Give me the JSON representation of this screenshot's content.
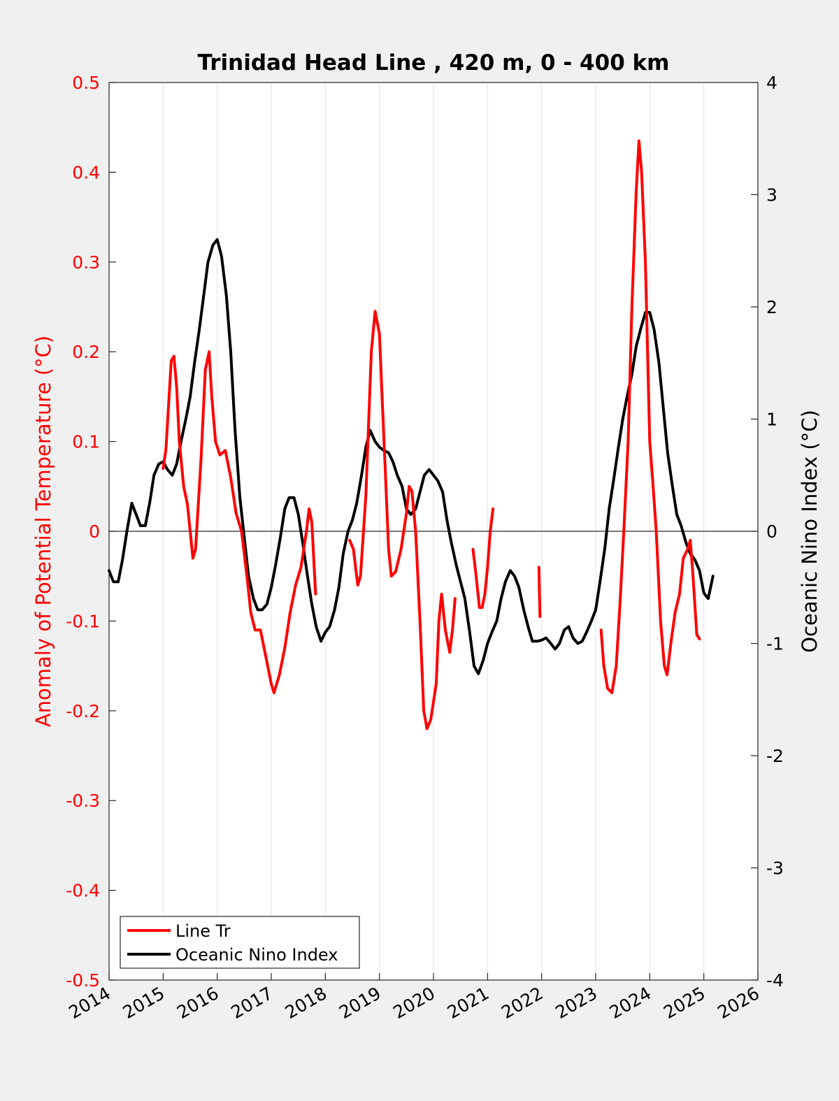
{
  "chart_data": {
    "type": "line",
    "title": "Trinidad Head Line , 420 m, 0 - 400 km",
    "xlim": [
      2014,
      2026
    ],
    "x_ticks": [
      "2014",
      "2015",
      "2016",
      "2017",
      "2018",
      "2019",
      "2020",
      "2021",
      "2022",
      "2023",
      "2024",
      "2025",
      "2026"
    ],
    "x_grid": true,
    "left_axis": {
      "label": "Anomaly of Potential Temperature (°C)",
      "color": "#ff0000",
      "ylim": [
        -0.5,
        0.5
      ],
      "ticks": [
        "0.5",
        "0.4",
        "0.3",
        "0.2",
        "0.1",
        "0",
        "-0.1",
        "-0.2",
        "-0.3",
        "-0.4",
        "-0.5"
      ]
    },
    "right_axis": {
      "label": "Oceanic Nino Index (°C)",
      "color": "#000000",
      "ylim": [
        -4,
        4
      ],
      "ticks": [
        "4",
        "3",
        "2",
        "1",
        "0",
        "-1",
        "-2",
        "-3",
        "-4"
      ]
    },
    "zero_line": true,
    "legend": {
      "position": "bottom-left",
      "entries": [
        "Line Tr",
        "Oceanic Nino Index"
      ]
    },
    "series": [
      {
        "name": "Line Tr",
        "axis": "left",
        "color": "#ff0000",
        "segments": [
          [
            [
              2015.0,
              0.07
            ],
            [
              2015.05,
              0.09
            ],
            [
              2015.1,
              0.14
            ],
            [
              2015.15,
              0.19
            ],
            [
              2015.2,
              0.195
            ],
            [
              2015.25,
              0.16
            ],
            [
              2015.3,
              0.1
            ],
            [
              2015.38,
              0.05
            ],
            [
              2015.45,
              0.03
            ],
            [
              2015.5,
              0.0
            ],
            [
              2015.55,
              -0.03
            ],
            [
              2015.6,
              -0.02
            ],
            [
              2015.7,
              0.08
            ],
            [
              2015.78,
              0.18
            ],
            [
              2015.85,
              0.2
            ],
            [
              2015.9,
              0.15
            ],
            [
              2015.97,
              0.1
            ],
            [
              2016.05,
              0.085
            ],
            [
              2016.15,
              0.09
            ],
            [
              2016.25,
              0.06
            ],
            [
              2016.35,
              0.02
            ],
            [
              2016.45,
              0.0
            ],
            [
              2016.55,
              -0.05
            ],
            [
              2016.62,
              -0.09
            ],
            [
              2016.7,
              -0.11
            ],
            [
              2016.8,
              -0.11
            ],
            [
              2016.9,
              -0.14
            ],
            [
              2017.0,
              -0.17
            ],
            [
              2017.05,
              -0.18
            ],
            [
              2017.15,
              -0.16
            ],
            [
              2017.25,
              -0.13
            ],
            [
              2017.35,
              -0.09
            ],
            [
              2017.45,
              -0.06
            ],
            [
              2017.55,
              -0.04
            ],
            [
              2017.65,
              0.0
            ],
            [
              2017.7,
              0.025
            ],
            [
              2017.75,
              0.01
            ],
            [
              2017.82,
              -0.07
            ]
          ],
          [
            [
              2018.45,
              -0.01
            ],
            [
              2018.52,
              -0.02
            ],
            [
              2018.6,
              -0.06
            ],
            [
              2018.65,
              -0.05
            ],
            [
              2018.75,
              0.04
            ],
            [
              2018.85,
              0.2
            ],
            [
              2018.92,
              0.245
            ],
            [
              2019.0,
              0.22
            ],
            [
              2019.05,
              0.15
            ],
            [
              2019.1,
              0.08
            ],
            [
              2019.17,
              -0.02
            ],
            [
              2019.22,
              -0.05
            ],
            [
              2019.3,
              -0.045
            ],
            [
              2019.4,
              -0.02
            ],
            [
              2019.5,
              0.02
            ],
            [
              2019.55,
              0.05
            ],
            [
              2019.6,
              0.045
            ],
            [
              2019.67,
              0.0
            ],
            [
              2019.75,
              -0.1
            ],
            [
              2019.82,
              -0.2
            ],
            [
              2019.88,
              -0.22
            ],
            [
              2019.95,
              -0.21
            ],
            [
              2020.05,
              -0.17
            ],
            [
              2020.1,
              -0.1
            ],
            [
              2020.15,
              -0.07
            ],
            [
              2020.22,
              -0.11
            ],
            [
              2020.3,
              -0.135
            ],
            [
              2020.35,
              -0.11
            ],
            [
              2020.4,
              -0.075
            ]
          ],
          [
            [
              2020.73,
              -0.02
            ],
            [
              2020.78,
              -0.045
            ],
            [
              2020.85,
              -0.085
            ],
            [
              2020.9,
              -0.085
            ],
            [
              2020.95,
              -0.07
            ],
            [
              2021.0,
              -0.04
            ],
            [
              2021.05,
              0.0
            ],
            [
              2021.1,
              0.025
            ]
          ],
          [
            [
              2021.95,
              -0.04
            ],
            [
              2021.96,
              -0.07
            ],
            [
              2021.97,
              -0.095
            ]
          ],
          [
            [
              2023.1,
              -0.11
            ],
            [
              2023.15,
              -0.15
            ],
            [
              2023.22,
              -0.175
            ],
            [
              2023.3,
              -0.18
            ],
            [
              2023.38,
              -0.15
            ],
            [
              2023.45,
              -0.08
            ],
            [
              2023.52,
              0.0
            ],
            [
              2023.6,
              0.1
            ],
            [
              2023.67,
              0.25
            ],
            [
              2023.75,
              0.38
            ],
            [
              2023.8,
              0.435
            ],
            [
              2023.85,
              0.4
            ],
            [
              2023.92,
              0.3
            ],
            [
              2024.0,
              0.1
            ],
            [
              2024.05,
              0.06
            ],
            [
              2024.12,
              0.0
            ],
            [
              2024.2,
              -0.1
            ],
            [
              2024.27,
              -0.15
            ],
            [
              2024.32,
              -0.16
            ],
            [
              2024.4,
              -0.12
            ],
            [
              2024.47,
              -0.09
            ],
            [
              2024.55,
              -0.07
            ],
            [
              2024.62,
              -0.03
            ],
            [
              2024.7,
              -0.02
            ],
            [
              2024.75,
              -0.01
            ],
            [
              2024.8,
              -0.05
            ],
            [
              2024.87,
              -0.115
            ],
            [
              2024.92,
              -0.12
            ]
          ]
        ]
      },
      {
        "name": "Oceanic Nino Index",
        "axis": "right",
        "color": "#000000",
        "segments": [
          [
            [
              2014.0,
              -0.35
            ],
            [
              2014.08,
              -0.45
            ],
            [
              2014.17,
              -0.45
            ],
            [
              2014.25,
              -0.25
            ],
            [
              2014.33,
              0.0
            ],
            [
              2014.42,
              0.25
            ],
            [
              2014.5,
              0.15
            ],
            [
              2014.58,
              0.05
            ],
            [
              2014.67,
              0.05
            ],
            [
              2014.75,
              0.25
            ],
            [
              2014.83,
              0.5
            ],
            [
              2014.92,
              0.6
            ],
            [
              2015.0,
              0.62
            ],
            [
              2015.08,
              0.55
            ],
            [
              2015.17,
              0.5
            ],
            [
              2015.25,
              0.6
            ],
            [
              2015.33,
              0.8
            ],
            [
              2015.42,
              1.0
            ],
            [
              2015.5,
              1.2
            ],
            [
              2015.58,
              1.5
            ],
            [
              2015.67,
              1.8
            ],
            [
              2015.75,
              2.1
            ],
            [
              2015.83,
              2.4
            ],
            [
              2015.92,
              2.55
            ],
            [
              2016.0,
              2.6
            ],
            [
              2016.08,
              2.45
            ],
            [
              2016.17,
              2.1
            ],
            [
              2016.25,
              1.6
            ],
            [
              2016.33,
              0.9
            ],
            [
              2016.42,
              0.3
            ],
            [
              2016.5,
              -0.05
            ],
            [
              2016.58,
              -0.4
            ],
            [
              2016.67,
              -0.6
            ],
            [
              2016.75,
              -0.7
            ],
            [
              2016.83,
              -0.7
            ],
            [
              2016.92,
              -0.65
            ],
            [
              2017.0,
              -0.5
            ],
            [
              2017.08,
              -0.3
            ],
            [
              2017.17,
              -0.05
            ],
            [
              2017.25,
              0.2
            ],
            [
              2017.33,
              0.3
            ],
            [
              2017.42,
              0.3
            ],
            [
              2017.5,
              0.15
            ],
            [
              2017.58,
              -0.1
            ],
            [
              2017.67,
              -0.4
            ],
            [
              2017.75,
              -0.65
            ],
            [
              2017.83,
              -0.85
            ],
            [
              2017.92,
              -0.98
            ],
            [
              2018.0,
              -0.9
            ],
            [
              2018.08,
              -0.85
            ],
            [
              2018.17,
              -0.7
            ],
            [
              2018.25,
              -0.5
            ],
            [
              2018.33,
              -0.2
            ],
            [
              2018.42,
              0.0
            ],
            [
              2018.5,
              0.1
            ],
            [
              2018.58,
              0.25
            ],
            [
              2018.67,
              0.5
            ],
            [
              2018.75,
              0.75
            ],
            [
              2018.83,
              0.9
            ],
            [
              2018.92,
              0.8
            ],
            [
              2019.0,
              0.75
            ],
            [
              2019.08,
              0.72
            ],
            [
              2019.17,
              0.7
            ],
            [
              2019.25,
              0.62
            ],
            [
              2019.33,
              0.5
            ],
            [
              2019.42,
              0.4
            ],
            [
              2019.5,
              0.2
            ],
            [
              2019.58,
              0.15
            ],
            [
              2019.67,
              0.2
            ],
            [
              2019.75,
              0.35
            ],
            [
              2019.83,
              0.5
            ],
            [
              2019.92,
              0.55
            ],
            [
              2020.0,
              0.5
            ],
            [
              2020.08,
              0.45
            ],
            [
              2020.17,
              0.35
            ],
            [
              2020.25,
              0.1
            ],
            [
              2020.33,
              -0.1
            ],
            [
              2020.42,
              -0.3
            ],
            [
              2020.5,
              -0.45
            ],
            [
              2020.58,
              -0.6
            ],
            [
              2020.67,
              -0.9
            ],
            [
              2020.75,
              -1.2
            ],
            [
              2020.83,
              -1.27
            ],
            [
              2020.92,
              -1.15
            ],
            [
              2021.0,
              -1.0
            ],
            [
              2021.08,
              -0.9
            ],
            [
              2021.17,
              -0.8
            ],
            [
              2021.25,
              -0.6
            ],
            [
              2021.33,
              -0.45
            ],
            [
              2021.42,
              -0.35
            ],
            [
              2021.5,
              -0.4
            ],
            [
              2021.58,
              -0.5
            ],
            [
              2021.67,
              -0.7
            ],
            [
              2021.75,
              -0.85
            ],
            [
              2021.83,
              -0.98
            ],
            [
              2021.92,
              -0.98
            ],
            [
              2022.0,
              -0.97
            ],
            [
              2022.08,
              -0.95
            ],
            [
              2022.17,
              -1.0
            ],
            [
              2022.25,
              -1.05
            ],
            [
              2022.33,
              -1.0
            ],
            [
              2022.42,
              -0.88
            ],
            [
              2022.5,
              -0.85
            ],
            [
              2022.58,
              -0.95
            ],
            [
              2022.67,
              -1.0
            ],
            [
              2022.75,
              -0.98
            ],
            [
              2022.83,
              -0.9
            ],
            [
              2022.92,
              -0.8
            ],
            [
              2023.0,
              -0.7
            ],
            [
              2023.08,
              -0.45
            ],
            [
              2023.17,
              -0.15
            ],
            [
              2023.25,
              0.2
            ],
            [
              2023.33,
              0.45
            ],
            [
              2023.42,
              0.75
            ],
            [
              2023.5,
              1.0
            ],
            [
              2023.58,
              1.2
            ],
            [
              2023.67,
              1.4
            ],
            [
              2023.75,
              1.65
            ],
            [
              2023.83,
              1.8
            ],
            [
              2023.92,
              1.95
            ],
            [
              2024.0,
              1.95
            ],
            [
              2024.08,
              1.8
            ],
            [
              2024.17,
              1.5
            ],
            [
              2024.25,
              1.1
            ],
            [
              2024.33,
              0.7
            ],
            [
              2024.42,
              0.4
            ],
            [
              2024.5,
              0.15
            ],
            [
              2024.58,
              0.05
            ],
            [
              2024.67,
              -0.1
            ],
            [
              2024.75,
              -0.2
            ],
            [
              2024.83,
              -0.25
            ],
            [
              2024.92,
              -0.35
            ],
            [
              2025.0,
              -0.55
            ],
            [
              2025.08,
              -0.6
            ],
            [
              2025.17,
              -0.4
            ]
          ]
        ]
      }
    ]
  }
}
